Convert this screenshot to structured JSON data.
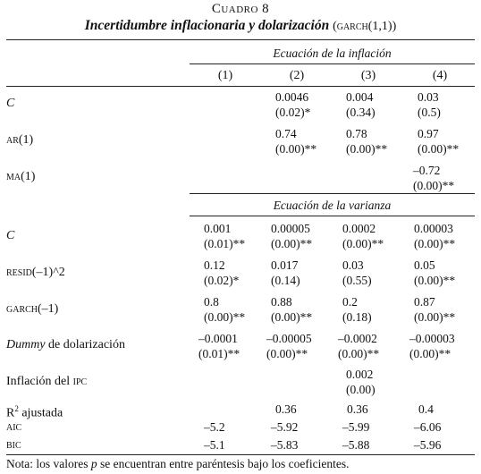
{
  "title": {
    "label": "Cuadro 8",
    "main": "Incertidumbre inflacionaria y dolarización",
    "sub": "(garch(1,1))"
  },
  "sections": {
    "inflation": "Ecuación de la inflación",
    "variance": "Ecuación de la varianza"
  },
  "columns": [
    "(1)",
    "(2)",
    "(3)",
    "(4)"
  ],
  "rows": [
    {
      "label": "C",
      "cells": [
        "",
        "0.0046\n(0.02)*",
        "0.004\n(0.34)",
        "0.03\n(0.5)"
      ]
    },
    {
      "label": "ar(1)",
      "cells": [
        "",
        "0.74\n(0.00)**",
        "0.78\n(0.00)**",
        "0.97\n(0.00)**"
      ]
    },
    {
      "label": "ma(1)",
      "cells": [
        "",
        "",
        "",
        "–0.72\n(0.00)**"
      ]
    },
    {
      "label": "C",
      "cells": [
        "0.001\n(0.01)**",
        "0.00005\n(0.00)**",
        "0.0002\n(0.00)**",
        "0.00003\n(0.00)**"
      ]
    },
    {
      "label": "resid(–1)^2",
      "cells": [
        "0.12\n(0.02)*",
        "0.017\n(0.14)",
        "0.03\n(0.55)",
        "0.05\n(0.00)**"
      ]
    },
    {
      "label": "garch(–1)",
      "cells": [
        "0.8\n(0.00)**",
        "0.88\n(0.00)**",
        "0.2\n(0.18)",
        "0.87\n(0.00)**"
      ]
    },
    {
      "label_italic": "Dummy",
      "label_rest": " de dolarización",
      "cells": [
        "–0.0001\n(0.01)**",
        "–0.00005\n(0.00)**",
        "–0.0002\n(0.00)**",
        "–0.00003\n(0.00)**"
      ]
    },
    {
      "label_plain": "Inflación del ",
      "label_sc": "ipc",
      "cells": [
        "",
        "",
        "0.002\n(0.00)",
        ""
      ]
    },
    {
      "label_r": "R",
      "label_sup": "2",
      "label_rest": " ajustada",
      "cells": [
        "",
        "0.36",
        "0.36",
        "0.4"
      ]
    },
    {
      "label": "aic",
      "cells": [
        "–5.2",
        "–5.92",
        "–5.99",
        "–6.06"
      ]
    },
    {
      "label": "bic",
      "cells": [
        "–5.1",
        "–5.83",
        "–5.88",
        "–5.96"
      ]
    }
  ],
  "note": {
    "prefix": "Nota: los valores ",
    "p": "p",
    "suffix": " se encuentran entre paréntesis bajo los coeficientes."
  }
}
